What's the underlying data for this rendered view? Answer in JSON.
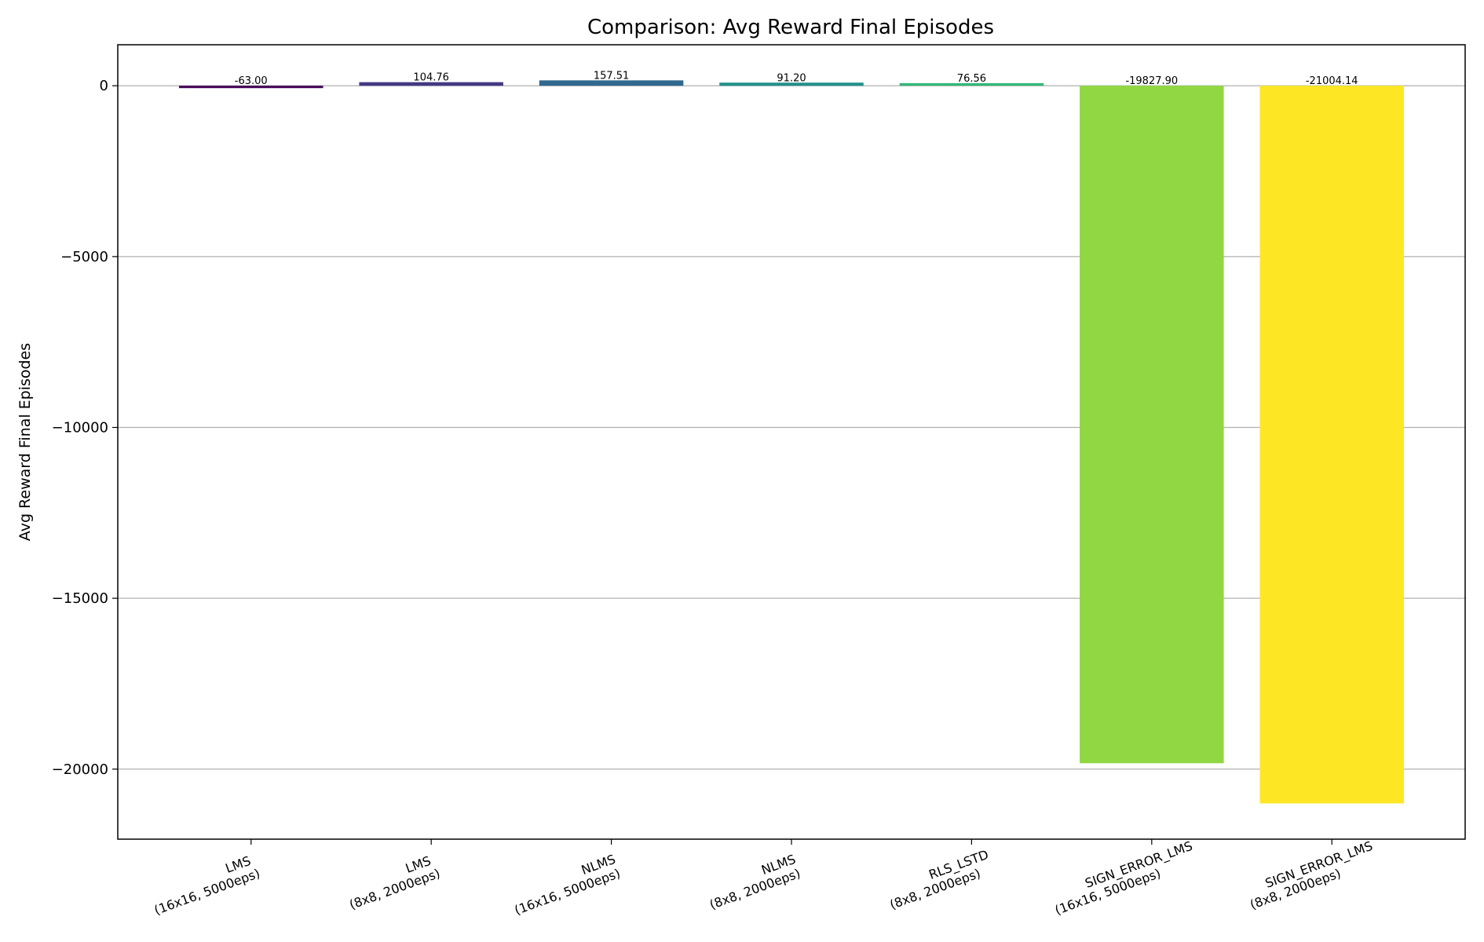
{
  "chart_data": {
    "type": "bar",
    "title": "Comparison: Avg Reward Final Episodes",
    "xlabel": "",
    "ylabel": "Avg Reward Final Episodes",
    "categories": [
      [
        "LMS",
        "(16x16, 5000eps)"
      ],
      [
        "LMS",
        "(8x8, 2000eps)"
      ],
      [
        "NLMS",
        "(16x16, 5000eps)"
      ],
      [
        "NLMS",
        "(8x8, 2000eps)"
      ],
      [
        "RLS_LSTD",
        "(8x8, 2000eps)"
      ],
      [
        "SIGN_ERROR_LMS",
        "(16x16, 5000eps)"
      ],
      [
        "SIGN_ERROR_LMS",
        "(8x8, 2000eps)"
      ]
    ],
    "values": [
      -63.0,
      104.76,
      157.51,
      91.2,
      76.56,
      -19827.9,
      -21004.14
    ],
    "value_labels": [
      "-63.00",
      "104.76",
      "157.51",
      "91.20",
      "76.56",
      "-19827.90",
      "-21004.14"
    ],
    "colors": [
      "#440154",
      "#443983",
      "#31688e",
      "#21918c",
      "#35b779",
      "#90d743",
      "#fde725"
    ],
    "yticks": [
      0,
      -5000,
      -10000,
      -15000,
      -20000
    ],
    "ytick_labels": [
      "0",
      "−5000",
      "−10000",
      "−15000",
      "−20000"
    ],
    "ylim": [
      -22050,
      1200
    ],
    "grid": "y",
    "legend": "none"
  }
}
